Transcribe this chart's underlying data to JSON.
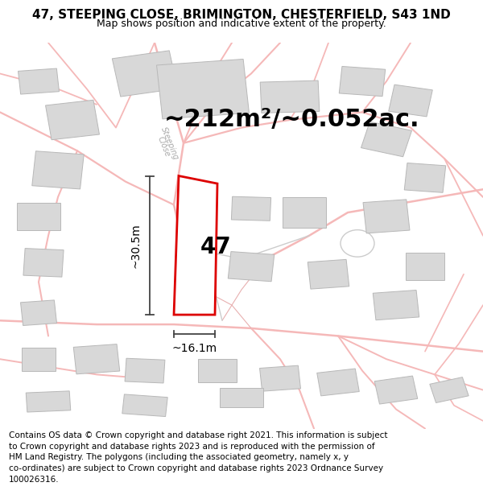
{
  "title": "47, STEEPING CLOSE, BRIMINGTON, CHESTERFIELD, S43 1ND",
  "subtitle": "Map shows position and indicative extent of the property.",
  "area_text": "~212m²/~0.052ac.",
  "dim_width": "~16.1m",
  "dim_height": "~30.5m",
  "property_number": "47",
  "footer": "Contains OS data © Crown copyright and database right 2021. This information is subject\nto Crown copyright and database rights 2023 and is reproduced with the permission of\nHM Land Registry. The polygons (including the associated geometry, namely x, y\nco-ordinates) are subject to Crown copyright and database rights 2023 Ordnance Survey\n100026316.",
  "bg_color": "#ffffff",
  "road_color": "#f5b8b8",
  "parcel_color": "#e8b0b0",
  "building_color": "#d8d8d8",
  "building_edge": "#b8b8b8",
  "plot_edge_color": "#dd0000",
  "plot_fill": "#ffffff",
  "dim_color": "#444444",
  "road_label_color": "#aaaaaa",
  "title_fontsize": 11,
  "subtitle_fontsize": 9,
  "area_fontsize": 22,
  "prop_label_fontsize": 20,
  "footer_fontsize": 7.5
}
